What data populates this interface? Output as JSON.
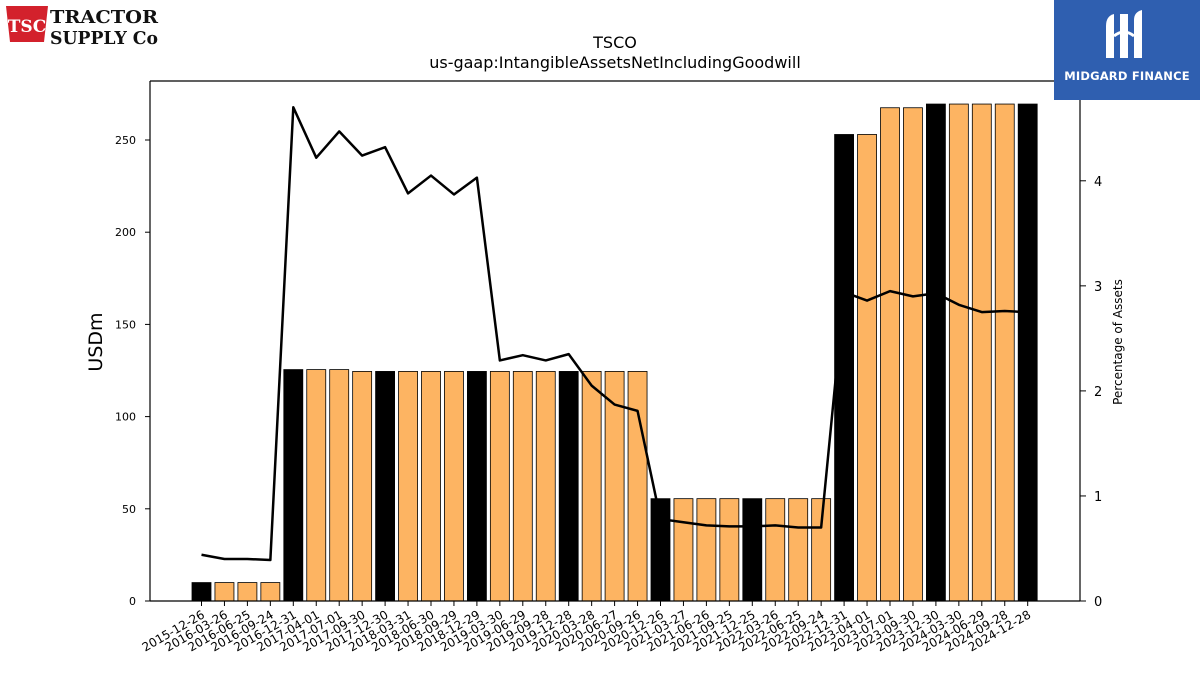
{
  "brand_left": {
    "badge_text": "TSC",
    "line1": "TRACTOR",
    "line2": "SUPPLY Co",
    "colors": {
      "badge": "#d3212c"
    }
  },
  "brand_right": {
    "label": "MIDGARD FINANCE",
    "colors": {
      "background": "#2f5fb0"
    }
  },
  "chart_data": {
    "type": "bar",
    "title": "TSCO",
    "subtitle": "us-gaap:IntangibleAssetsNetIncludingGoodwill",
    "ylabel": "USDm",
    "y2label": "Percentage of Assets",
    "ylim": [
      0,
      282
    ],
    "y2lim": [
      0,
      4.95
    ],
    "yticks": [
      0,
      50,
      100,
      150,
      200,
      250
    ],
    "y2ticks": [
      0,
      1,
      2,
      3,
      4
    ],
    "categories": [
      "2015-12-26",
      "2016-03-26",
      "2016-06-25",
      "2016-09-24",
      "2016-12-31",
      "2017-04-01",
      "2017-07-01",
      "2017-09-30",
      "2017-12-30",
      "2018-03-31",
      "2018-06-30",
      "2018-09-29",
      "2018-12-29",
      "2019-03-30",
      "2019-06-29",
      "2019-09-28",
      "2019-12-28",
      "2020-03-28",
      "2020-06-27",
      "2020-09-26",
      "2020-12-26",
      "2021-03-27",
      "2021-06-26",
      "2021-09-25",
      "2021-12-25",
      "2022-03-26",
      "2022-06-25",
      "2022-09-24",
      "2022-12-31",
      "2023-04-01",
      "2023-07-01",
      "2023-09-30",
      "2023-12-30",
      "2024-03-30",
      "2024-06-29",
      "2024-09-28",
      "2024-12-28"
    ],
    "series": [
      {
        "values": [
          10,
          10,
          10,
          10,
          125.5,
          125.5,
          125.5,
          124.5,
          124.5,
          124.5,
          124.5,
          124.5,
          124.5,
          124.5,
          124.5,
          124.5,
          124.5,
          124.5,
          124.5,
          124.5,
          55.5,
          55.5,
          55.5,
          55.5,
          55.5,
          55.5,
          55.5,
          55.5,
          253,
          253,
          267.5,
          267.5,
          269.5,
          269.5,
          269.5,
          269.5,
          269.5
        ]
      },
      {
        "axis": "right",
        "type": "line",
        "values": [
          0.44,
          0.4,
          0.4,
          0.39,
          4.7,
          4.22,
          4.47,
          4.24,
          4.32,
          3.88,
          4.05,
          3.87,
          4.03,
          2.29,
          2.34,
          2.29,
          2.35,
          2.05,
          1.87,
          1.81,
          0.78,
          0.75,
          0.72,
          0.71,
          0.71,
          0.72,
          0.7,
          0.7,
          2.94,
          2.86,
          2.95,
          2.9,
          2.93,
          2.82,
          2.75,
          2.76,
          2.75
        ]
      }
    ],
    "annual_marker_indices": [
      0,
      4,
      8,
      12,
      16,
      20,
      24,
      28,
      32,
      36
    ],
    "colors": {
      "annual_bar": "#000000",
      "quarterly_bar": "#fdb462",
      "line": "#000000"
    },
    "grid": false
  }
}
